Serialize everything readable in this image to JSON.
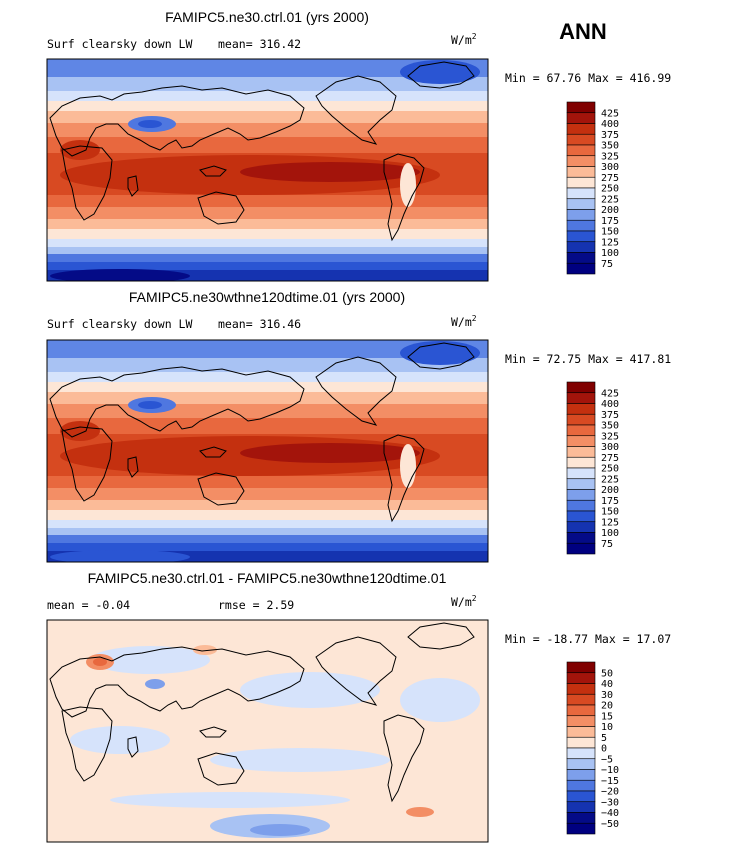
{
  "season_label": "ANN",
  "panels": [
    {
      "title": "FAMIPC5.ne30.ctrl.01 (yrs 2000)",
      "variable": "Surf clearsky down LW",
      "stat1_label": "mean=",
      "stat1_value": "316.42",
      "units_base": "W/m",
      "units_exp": "2",
      "minmax": "Min =  67.76 Max = 416.99"
    },
    {
      "title": "FAMIPC5.ne30wthne120dtime.01 (yrs 2000)",
      "variable": "Surf clearsky down LW",
      "stat1_label": "mean=",
      "stat1_value": "316.46",
      "units_base": "W/m",
      "units_exp": "2",
      "minmax": "Min =  72.75 Max = 417.81"
    },
    {
      "title": "FAMIPC5.ne30.ctrl.01 - FAMIPC5.ne30wthne120dtime.01",
      "variable": "",
      "stat1_label": "mean =",
      "stat1_value": "-0.04",
      "stat2_label": "rmse =",
      "stat2_value": "2.59",
      "units_base": "W/m",
      "units_exp": "2",
      "minmax": "Min = -18.77 Max =  17.07"
    }
  ],
  "colorbars": [
    {
      "labels": [
        "425",
        "400",
        "375",
        "350",
        "325",
        "300",
        "275",
        "250",
        "225",
        "200",
        "175",
        "150",
        "125",
        "100",
        "75"
      ]
    },
    {
      "labels": [
        "425",
        "400",
        "375",
        "350",
        "325",
        "300",
        "275",
        "250",
        "225",
        "200",
        "175",
        "150",
        "125",
        "100",
        "75"
      ]
    },
    {
      "labels": [
        "50",
        "40",
        "30",
        "20",
        "15",
        "10",
        "5",
        "0",
        "-5",
        "-10",
        "-15",
        "-20",
        "-30",
        "-40",
        "-50"
      ]
    }
  ],
  "palette": [
    "#800000",
    "#a3140b",
    "#c4300f",
    "#d84a22",
    "#e8683e",
    "#f38e65",
    "#fbbb98",
    "#fde6d6",
    "#d6e3fb",
    "#a8c2f3",
    "#7d9feb",
    "#4f77e0",
    "#2a55d3",
    "#1533b0",
    "#040b87",
    "#000080"
  ],
  "chart_data": [
    {
      "type": "heatmap",
      "title": "FAMIPC5.ne30.ctrl.01 (yrs 2000)",
      "variable": "Surf clearsky down LW",
      "units": "W/m^2",
      "mean": 316.42,
      "min": 67.76,
      "max": 416.99,
      "contour_levels": [
        75,
        100,
        125,
        150,
        175,
        200,
        225,
        250,
        275,
        300,
        325,
        350,
        375,
        400,
        425
      ]
    },
    {
      "type": "heatmap",
      "title": "FAMIPC5.ne30wthne120dtime.01 (yrs 2000)",
      "variable": "Surf clearsky down LW",
      "units": "W/m^2",
      "mean": 316.46,
      "min": 72.75,
      "max": 417.81,
      "contour_levels": [
        75,
        100,
        125,
        150,
        175,
        200,
        225,
        250,
        275,
        300,
        325,
        350,
        375,
        400,
        425
      ]
    },
    {
      "type": "heatmap",
      "title": "FAMIPC5.ne30.ctrl.01 - FAMIPC5.ne30wthne120dtime.01",
      "units": "W/m^2",
      "mean": -0.04,
      "rmse": 2.59,
      "min": -18.77,
      "max": 17.07,
      "contour_levels": [
        -50,
        -40,
        -30,
        -20,
        -15,
        -10,
        -5,
        0,
        5,
        10,
        15,
        20,
        30,
        40,
        50
      ]
    }
  ]
}
